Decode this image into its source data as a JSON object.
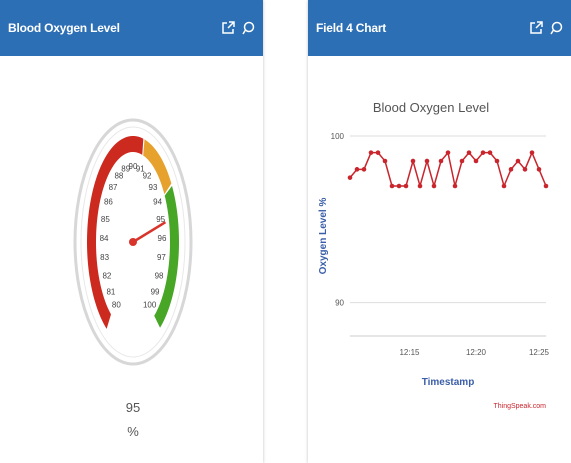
{
  "left_panel": {
    "title": "Blood Oxygen Level",
    "gauge": {
      "value": 95,
      "value_text": "95",
      "unit": "%",
      "min": 80,
      "max": 100,
      "ticks": [
        "80",
        "81",
        "82",
        "83",
        "84",
        "85",
        "86",
        "87",
        "88",
        "89",
        "90",
        "91",
        "92",
        "93",
        "94",
        "95",
        "96",
        "97",
        "98",
        "99",
        "100"
      ],
      "bands": [
        {
          "from": 80,
          "to": 91,
          "color": "#cc2a1f"
        },
        {
          "from": 91,
          "to": 94,
          "color": "#e6a22c"
        },
        {
          "from": 94,
          "to": 100,
          "color": "#48a626"
        }
      ],
      "needle_color": "#d9342b"
    },
    "icons": [
      "external-link-icon",
      "comment-icon"
    ]
  },
  "right_panel": {
    "title": "Field 4 Chart",
    "icons": [
      "external-link-icon",
      "comment-icon"
    ],
    "chart_data": {
      "type": "line",
      "title": "Blood Oxygen Level",
      "xlabel": "Timestamp",
      "ylabel": "Oxygen Level %",
      "ylim": [
        88,
        100
      ],
      "yticks": [
        "100",
        "90"
      ],
      "xticks": [
        "12:15",
        "12:20",
        "12:25"
      ],
      "x": [
        0,
        1,
        2,
        3,
        4,
        5,
        6,
        7,
        8,
        9,
        10,
        11,
        12,
        13,
        14,
        15,
        16,
        17,
        18,
        19,
        20,
        21,
        22,
        23,
        24,
        25,
        26,
        27,
        28
      ],
      "series": [
        {
          "values": [
            97.5,
            98,
            98,
            99,
            99,
            98.5,
            97,
            97,
            97,
            98.5,
            97,
            98.5,
            97,
            98.5,
            99,
            97,
            98.5,
            99,
            98.5,
            99,
            99,
            98.5,
            97,
            98,
            98.5,
            98,
            99,
            98,
            97
          ]
        }
      ],
      "line_color": "#c9252d",
      "credit": "ThingSpeak.com"
    }
  }
}
